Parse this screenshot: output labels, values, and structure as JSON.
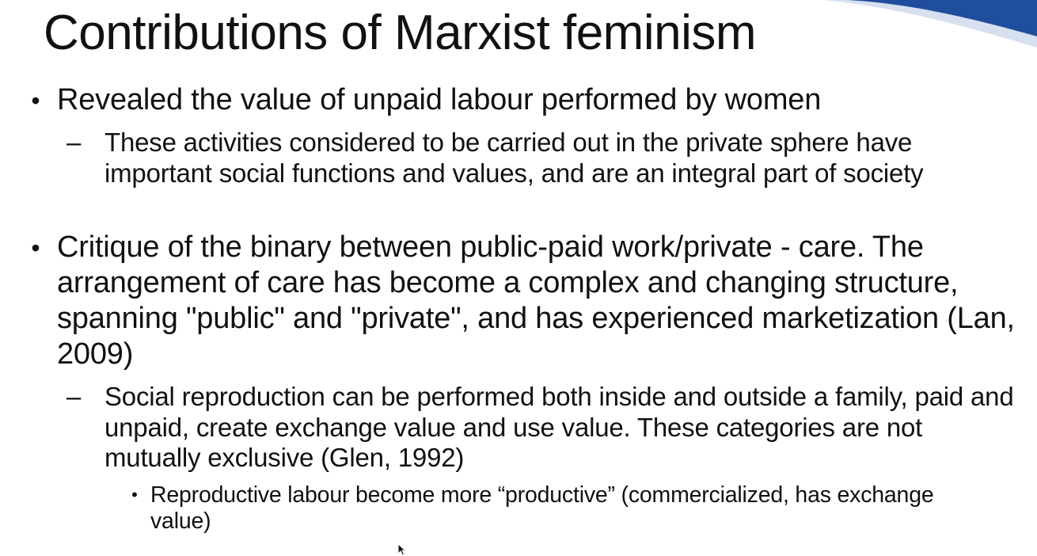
{
  "slide": {
    "title": "Contributions of Marxist feminism",
    "accent_color": "#1f4e9c",
    "bullets": [
      {
        "marker": "•",
        "text": "Revealed the value of unpaid labour performed by women",
        "sub": [
          {
            "marker": "–",
            "text": "These activities considered to be carried out in the private sphere have important social functions and values, and are an integral part of society"
          }
        ]
      },
      {
        "marker": "•",
        "text": "Critique of the binary between public-paid work/private - care. The arrangement of care has become a complex and changing structure, spanning \"public\" and \"private\", and has experienced marketization (Lan, 2009)",
        "sub": [
          {
            "marker": "–",
            "text": "Social reproduction can be performed both inside and outside a family, paid and unpaid, create exchange value and use value. These categories are not mutually exclusive (Glen, 1992)",
            "sub": [
              {
                "marker": "•",
                "text": "Reproductive labour become more “productive” (commercialized, has exchange value)"
              }
            ]
          }
        ]
      }
    ]
  }
}
